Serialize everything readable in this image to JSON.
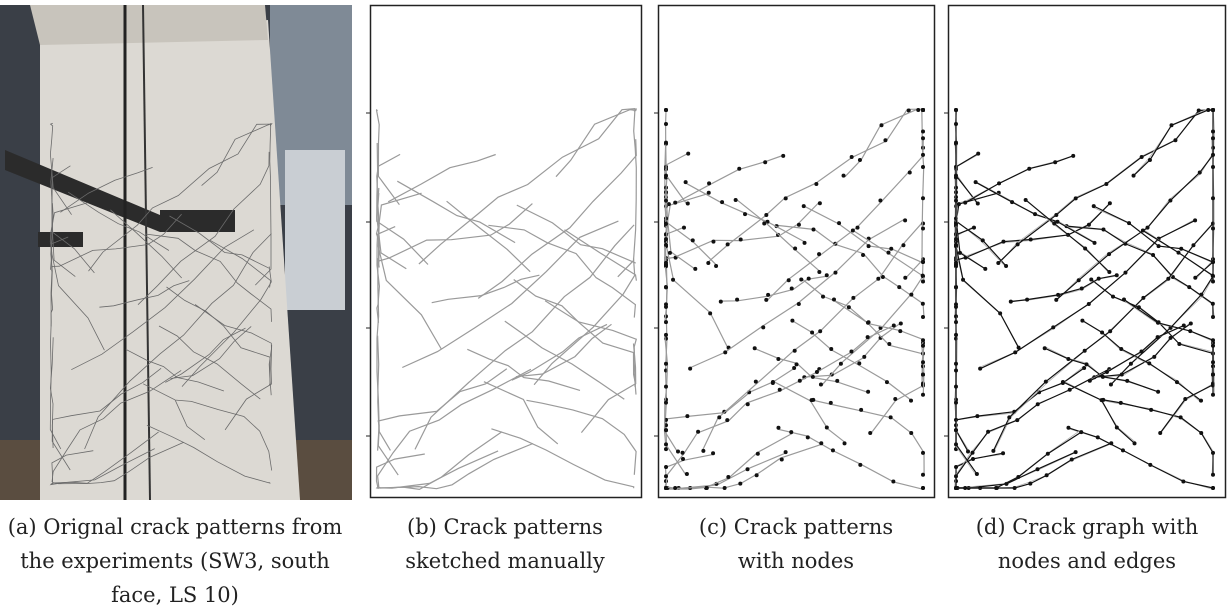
{
  "panels": [
    {
      "caption": [
        "(a) Orignal crack patterns from",
        "the experiments (SW3, south",
        "face, LS 10)"
      ]
    },
    {
      "caption": [
        "(b) Crack patterns",
        "sketched manually"
      ]
    },
    {
      "caption": [
        "(c) Crack patterns",
        "with nodes"
      ]
    },
    {
      "caption": [
        "(d) Crack graph with",
        "nodes and edges"
      ]
    }
  ]
}
